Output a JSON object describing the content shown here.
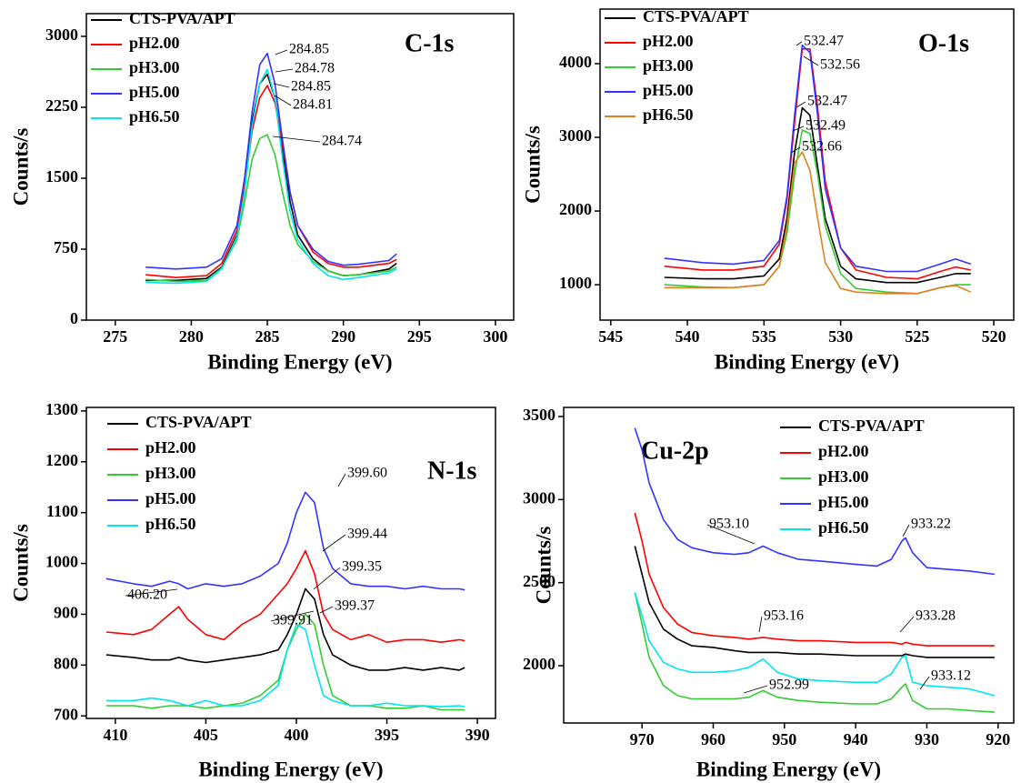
{
  "chart_data": [
    {
      "type": "line",
      "label": "C-1s",
      "xlabel": "Binding Energy (eV)",
      "ylabel": "Counts/s",
      "xlim": [
        273.1,
        301.2
      ],
      "ylim": [
        0,
        3240
      ],
      "xticks": [
        275,
        280,
        285,
        290,
        295,
        300
      ],
      "yticks": [
        0,
        750,
        1500,
        2250,
        3000
      ],
      "x": [
        277,
        279,
        281,
        282,
        283,
        283.5,
        284,
        284.5,
        285,
        285.5,
        286,
        286.5,
        287,
        288,
        289,
        290,
        291,
        293,
        293.5
      ],
      "series": [
        {
          "name": "CTS-PVA/APT",
          "color": "#000000",
          "values": [
            420,
            420,
            440,
            560,
            900,
            1400,
            2100,
            2500,
            2600,
            2350,
            1800,
            1250,
            900,
            650,
            520,
            470,
            480,
            540,
            600
          ]
        },
        {
          "name": "pH2.00",
          "color": "#ff0000",
          "values": [
            480,
            450,
            470,
            600,
            950,
            1400,
            2000,
            2350,
            2480,
            2300,
            1850,
            1350,
            1000,
            720,
            600,
            560,
            560,
            600,
            640
          ]
        },
        {
          "name": "pH3.00",
          "color": "#33cc33",
          "values": [
            430,
            410,
            420,
            550,
            850,
            1250,
            1700,
            1920,
            1960,
            1750,
            1350,
            1000,
            800,
            620,
            520,
            470,
            480,
            520,
            560
          ]
        },
        {
          "name": "pH5.00",
          "color": "#3333ff",
          "values": [
            560,
            540,
            560,
            650,
            1000,
            1500,
            2200,
            2700,
            2820,
            2500,
            1900,
            1350,
            1000,
            750,
            620,
            580,
            590,
            630,
            700
          ]
        },
        {
          "name": "pH6.50",
          "color": "#00e5ee",
          "values": [
            400,
            390,
            410,
            540,
            880,
            1350,
            2050,
            2500,
            2650,
            2350,
            1700,
            1150,
            850,
            600,
            470,
            430,
            450,
            500,
            540
          ]
        }
      ],
      "annotations": [
        "284.85",
        "284.78",
        "284.85",
        "284.81",
        "284.74"
      ]
    },
    {
      "type": "line",
      "label": "O-1s",
      "xlabel": "Binding Energy (eV)",
      "ylabel": "Counts/s",
      "xlim": [
        545.7,
        518.7
      ],
      "ylim": [
        520,
        4740
      ],
      "xticks": [
        545,
        540,
        535,
        530,
        525,
        520
      ],
      "yticks": [
        1000,
        2000,
        3000,
        4000
      ],
      "x": [
        541.5,
        539,
        537,
        535,
        534,
        533.5,
        533,
        532.5,
        532,
        531.5,
        531,
        530,
        529,
        527,
        525,
        523.5,
        522.5,
        521.5
      ],
      "series": [
        {
          "name": "CTS-PVA/APT",
          "color": "#000000",
          "values": [
            1100,
            1080,
            1080,
            1120,
            1350,
            1900,
            2800,
            3400,
            3300,
            2600,
            1900,
            1250,
            1080,
            1030,
            1030,
            1100,
            1150,
            1150
          ]
        },
        {
          "name": "pH2.00",
          "color": "#ff0000",
          "values": [
            1250,
            1200,
            1200,
            1250,
            1550,
            2150,
            3200,
            4200,
            4200,
            3400,
            2400,
            1500,
            1200,
            1100,
            1080,
            1180,
            1240,
            1200
          ]
        },
        {
          "name": "pH3.00",
          "color": "#33cc33",
          "values": [
            1000,
            970,
            960,
            1000,
            1250,
            1700,
            2500,
            3100,
            3050,
            2500,
            1800,
            1150,
            950,
            900,
            880,
            960,
            1000,
            1000
          ]
        },
        {
          "name": "pH5.00",
          "color": "#3333ff",
          "values": [
            1360,
            1300,
            1280,
            1330,
            1600,
            2200,
            3300,
            4250,
            4150,
            3300,
            2300,
            1500,
            1250,
            1180,
            1180,
            1280,
            1350,
            1280
          ]
        },
        {
          "name": "pH6.50",
          "color": "#e08020",
          "values": [
            960,
            960,
            960,
            1000,
            1250,
            1800,
            2650,
            2800,
            2550,
            1900,
            1300,
            950,
            900,
            880,
            880,
            960,
            990,
            900
          ]
        }
      ],
      "annotations": [
        "532.47",
        "532.56",
        "532.47",
        "532.49",
        "532.66"
      ]
    },
    {
      "type": "line",
      "label": "N-1s",
      "xlabel": "Binding Energy (eV)",
      "ylabel": "Counts/s",
      "xlim": [
        411.6,
        389
      ],
      "ylim": [
        695,
        1307
      ],
      "xticks": [
        410,
        405,
        400,
        395,
        390
      ],
      "yticks": [
        700,
        800,
        900,
        1000,
        1100,
        1200,
        1300
      ],
      "x": [
        410.5,
        409,
        408,
        407,
        406.5,
        406,
        405,
        404,
        403,
        402,
        401,
        400.5,
        400,
        399.5,
        399,
        398.5,
        398,
        397,
        396,
        395,
        394,
        393,
        392,
        391,
        390.7
      ],
      "series": [
        {
          "name": "CTS-PVA/APT",
          "color": "#000000",
          "values": [
            820,
            815,
            810,
            810,
            815,
            810,
            805,
            810,
            815,
            820,
            830,
            860,
            900,
            950,
            930,
            860,
            820,
            800,
            790,
            790,
            795,
            790,
            795,
            790,
            795
          ]
        },
        {
          "name": "pH2.00",
          "color": "#ff0000",
          "values": [
            865,
            860,
            870,
            900,
            915,
            890,
            860,
            850,
            880,
            900,
            940,
            960,
            990,
            1025,
            980,
            900,
            870,
            850,
            860,
            845,
            850,
            850,
            845,
            850,
            848
          ]
        },
        {
          "name": "pH3.00",
          "color": "#33cc33",
          "values": [
            720,
            720,
            715,
            720,
            720,
            720,
            715,
            720,
            725,
            740,
            770,
            830,
            870,
            900,
            880,
            800,
            740,
            720,
            720,
            715,
            715,
            720,
            712,
            712,
            712
          ]
        },
        {
          "name": "pH5.00",
          "color": "#3333ff",
          "values": [
            970,
            960,
            955,
            965,
            960,
            950,
            960,
            955,
            960,
            975,
            1000,
            1040,
            1100,
            1140,
            1120,
            1030,
            990,
            960,
            955,
            955,
            950,
            955,
            950,
            950,
            948
          ]
        },
        {
          "name": "pH6.50",
          "color": "#00e5ee",
          "values": [
            730,
            730,
            735,
            730,
            725,
            720,
            730,
            720,
            720,
            730,
            760,
            830,
            880,
            870,
            800,
            740,
            730,
            720,
            720,
            725,
            720,
            720,
            718,
            720,
            718
          ]
        }
      ],
      "annotations": [
        "399.60",
        "399.44",
        "399.35",
        "406.20",
        "399.91",
        "399.37"
      ]
    },
    {
      "type": "line",
      "label": "Cu-2p",
      "xlabel": "Binding Energy (eV)",
      "ylabel": "Counts/s",
      "xlim": [
        981,
        917.8
      ],
      "ylim": [
        1655,
        3555
      ],
      "xticks": [
        970,
        960,
        950,
        940,
        930,
        920
      ],
      "yticks": [
        2000,
        2500,
        3000,
        3500
      ],
      "x": [
        971,
        970,
        969,
        967,
        965,
        963,
        960,
        957,
        955,
        953,
        951,
        948,
        945,
        940,
        937,
        935,
        933.5,
        933,
        932,
        930,
        927,
        924,
        920.5
      ],
      "series": [
        {
          "name": "CTS-PVA/APT",
          "color": "#000000",
          "values": [
            2720,
            2550,
            2380,
            2220,
            2160,
            2120,
            2110,
            2090,
            2080,
            2080,
            2080,
            2070,
            2070,
            2060,
            2060,
            2060,
            2060,
            2070,
            2060,
            2050,
            2050,
            2050,
            2050
          ]
        },
        {
          "name": "pH2.00",
          "color": "#ff0000",
          "values": [
            2920,
            2750,
            2550,
            2350,
            2250,
            2200,
            2180,
            2170,
            2160,
            2170,
            2160,
            2150,
            2150,
            2140,
            2140,
            2140,
            2130,
            2140,
            2130,
            2120,
            2120,
            2120,
            2120
          ]
        },
        {
          "name": "pH3.00",
          "color": "#33cc33",
          "values": [
            2440,
            2250,
            2050,
            1880,
            1820,
            1800,
            1800,
            1800,
            1810,
            1850,
            1810,
            1790,
            1780,
            1770,
            1770,
            1800,
            1870,
            1890,
            1790,
            1740,
            1740,
            1730,
            1720
          ]
        },
        {
          "name": "pH5.00",
          "color": "#3333ff",
          "values": [
            3430,
            3300,
            3100,
            2880,
            2760,
            2710,
            2680,
            2670,
            2680,
            2720,
            2680,
            2640,
            2630,
            2610,
            2600,
            2640,
            2750,
            2770,
            2680,
            2590,
            2580,
            2570,
            2550
          ]
        },
        {
          "name": "pH6.50",
          "color": "#00e5ee",
          "values": [
            2440,
            2300,
            2150,
            2020,
            1980,
            1960,
            1960,
            1970,
            1990,
            2040,
            1960,
            1920,
            1910,
            1900,
            1900,
            1950,
            2050,
            2060,
            1900,
            1880,
            1870,
            1860,
            1820
          ]
        }
      ],
      "annotations": [
        "953.10",
        "933.22",
        "953.16",
        "933.28",
        "952.99",
        "933.12"
      ]
    }
  ]
}
